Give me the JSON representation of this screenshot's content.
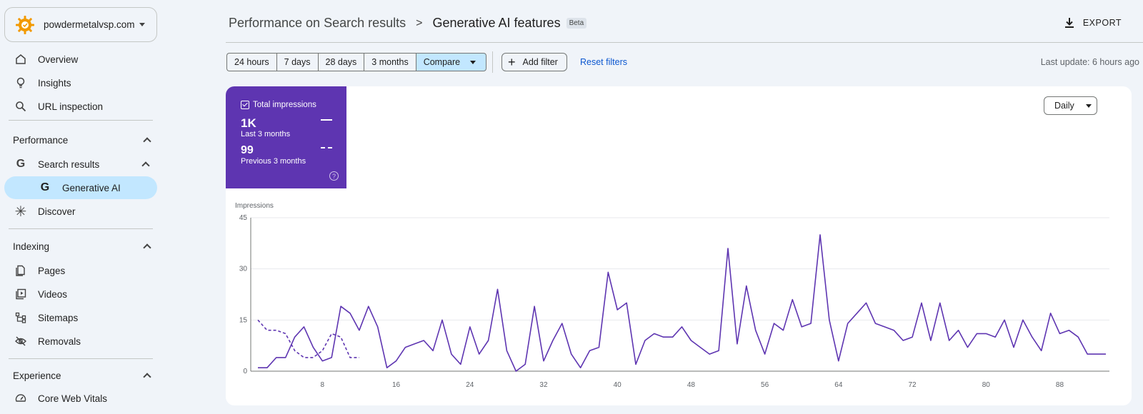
{
  "property": {
    "name": "powdermetalvsp.com"
  },
  "sidebar": {
    "top_items": [
      {
        "label": "Overview",
        "icon": "home-icon"
      },
      {
        "label": "Insights",
        "icon": "lightbulb-icon"
      },
      {
        "label": "URL inspection",
        "icon": "search-icon"
      }
    ],
    "performance": {
      "title": "Performance",
      "search_results": "Search results",
      "generative_ai": "Generative AI",
      "discover": "Discover"
    },
    "indexing": {
      "title": "Indexing",
      "items": [
        {
          "label": "Pages",
          "icon": "pages-icon"
        },
        {
          "label": "Videos",
          "icon": "video-icon"
        },
        {
          "label": "Sitemaps",
          "icon": "sitemap-icon"
        },
        {
          "label": "Removals",
          "icon": "eye-off-icon"
        }
      ]
    },
    "experience": {
      "title": "Experience",
      "core_web_vitals": "Core Web Vitals"
    }
  },
  "header": {
    "parent": "Performance on Search results",
    "separator": ">",
    "current": "Generative AI features",
    "badge": "Beta",
    "export_label": "EXPORT"
  },
  "toolbar": {
    "ranges": [
      "24 hours",
      "7 days",
      "28 days",
      "3 months"
    ],
    "compare_label": "Compare",
    "add_filter_label": "Add filter",
    "reset_filters_label": "Reset filters",
    "last_update": "Last update: 6 hours ago"
  },
  "metric_card": {
    "title": "Total impressions",
    "current_value": "1K",
    "current_label": "Last 3 months",
    "previous_value": "99",
    "previous_label": "Previous 3 months",
    "help": "?",
    "color": "#5e35b1"
  },
  "granularity": {
    "selected": "Daily"
  },
  "chart_data": {
    "type": "line",
    "title": "",
    "ylabel": "Impressions",
    "xlabel": "",
    "ylim": [
      0,
      45
    ],
    "yticks": [
      0,
      15,
      30,
      45
    ],
    "xticks": [
      8,
      16,
      24,
      32,
      40,
      48,
      56,
      64,
      72,
      80,
      88
    ],
    "xlim": [
      1,
      93
    ],
    "grid": true,
    "series": [
      {
        "name": "Last 3 months",
        "style": "solid",
        "color": "#5e35b1",
        "x": [
          1,
          2,
          3,
          4,
          5,
          6,
          7,
          8,
          9,
          10,
          11,
          12,
          13,
          14,
          15,
          16,
          17,
          18,
          19,
          20,
          21,
          22,
          23,
          24,
          25,
          26,
          27,
          28,
          29,
          30,
          31,
          32,
          33,
          34,
          35,
          36,
          37,
          38,
          39,
          40,
          41,
          42,
          43,
          44,
          45,
          46,
          47,
          48,
          49,
          50,
          51,
          52,
          53,
          54,
          55,
          56,
          57,
          58,
          59,
          60,
          61,
          62,
          63,
          64,
          65,
          66,
          67,
          68,
          69,
          70,
          71,
          72,
          73,
          74,
          75,
          76,
          77,
          78,
          79,
          80,
          81,
          82,
          83,
          84,
          85,
          86,
          87,
          88,
          89,
          90,
          91,
          92,
          93
        ],
        "values": [
          1,
          1,
          4,
          4,
          10,
          13,
          7,
          3,
          4,
          19,
          17,
          12,
          19,
          13,
          1,
          3,
          7,
          8,
          9,
          6,
          15,
          5,
          2,
          13,
          5,
          9,
          24,
          6,
          0,
          2,
          19,
          3,
          9,
          14,
          5,
          1,
          6,
          7,
          29,
          18,
          20,
          2,
          9,
          11,
          10,
          10,
          13,
          9,
          7,
          5,
          6,
          36,
          8,
          25,
          12,
          5,
          14,
          12,
          21,
          13,
          14,
          40,
          15,
          3,
          14,
          17,
          20,
          14,
          13,
          12,
          9,
          10,
          20,
          9,
          20,
          9,
          12,
          7,
          11,
          11,
          10,
          15,
          7,
          15,
          10,
          6,
          17,
          11,
          12,
          10,
          5,
          5,
          5
        ]
      },
      {
        "name": "Previous 3 months",
        "style": "dashed",
        "color": "#5e35b1",
        "x": [
          1,
          2,
          3,
          4,
          5,
          6,
          7,
          8,
          9,
          10,
          11,
          12
        ],
        "values": [
          15,
          12,
          12,
          11,
          6,
          4,
          4,
          6,
          11,
          10,
          4,
          4
        ]
      }
    ]
  }
}
